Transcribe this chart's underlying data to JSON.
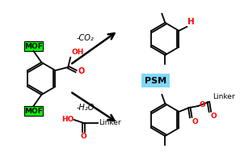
{
  "bg_color": "#ffffff",
  "green_color": "#00ff00",
  "mof_text_color": "#000000",
  "red_color": "#ff0000",
  "cyan_color": "#7fd8f8",
  "arrow_color": "#000000",
  "bond_color": "#000000",
  "figsize": [
    2.97,
    1.89
  ],
  "dpi": 100,
  "mof_label": "MOF",
  "psm_label": "PSM",
  "co2_label": "-CO₂",
  "h2o_label": "-H₂O",
  "linker_label": "Linker",
  "H_label": "H",
  "HO_label": "HO",
  "O_label": "O"
}
